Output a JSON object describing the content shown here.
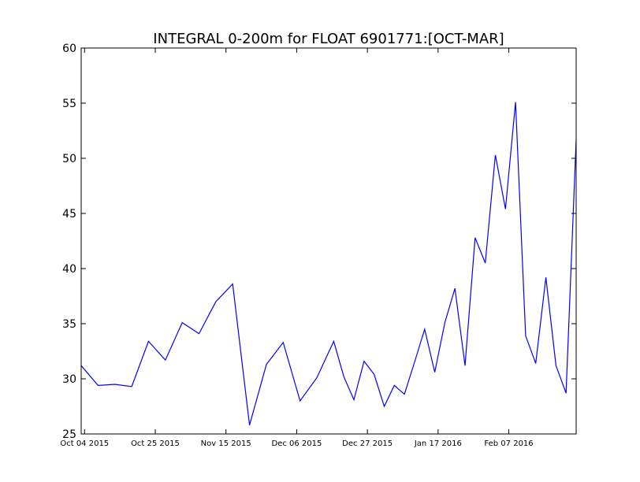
{
  "chart_data": {
    "type": "line",
    "title": "INTEGRAL 0-200m for FLOAT 6901771:[OCT-MAR]",
    "xlabel": "",
    "ylabel": "",
    "x_axis_type": "date",
    "xlim": [
      "2015-10-03",
      "2016-02-27"
    ],
    "ylim": [
      25,
      60
    ],
    "grid": false,
    "x_ticks": [
      "Oct 04 2015",
      "Oct 25 2015",
      "Nov 15 2015",
      "Dec 06 2015",
      "Dec 27 2015",
      "Jan 17 2016",
      "Feb 07 2016"
    ],
    "x_tick_dates": [
      "2015-10-04",
      "2015-10-25",
      "2015-11-15",
      "2015-12-06",
      "2015-12-27",
      "2016-01-17",
      "2016-02-07"
    ],
    "y_ticks": [
      "25",
      "30",
      "35",
      "40",
      "45",
      "50",
      "55",
      "60"
    ],
    "series": [
      {
        "color": "#0000ff",
        "x": [
          "2015-10-03",
          "2015-10-08",
          "2015-10-13",
          "2015-10-18",
          "2015-10-23",
          "2015-10-28",
          "2015-11-02",
          "2015-11-07",
          "2015-11-12",
          "2015-11-17",
          "2015-11-22",
          "2015-11-27",
          "2015-12-02",
          "2015-12-07",
          "2015-12-12",
          "2015-12-17",
          "2015-12-20",
          "2015-12-23",
          "2015-12-26",
          "2015-12-29",
          "2016-01-01",
          "2016-01-04",
          "2016-01-07",
          "2016-01-10",
          "2016-01-13",
          "2016-01-16",
          "2016-01-19",
          "2016-01-22",
          "2016-01-25",
          "2016-01-28",
          "2016-01-31",
          "2016-02-03",
          "2016-02-06",
          "2016-02-09",
          "2016-02-12",
          "2016-02-15",
          "2016-02-18",
          "2016-02-21",
          "2016-02-24",
          "2016-02-27"
        ],
        "y": [
          31.2,
          29.4,
          29.5,
          29.3,
          33.4,
          31.7,
          35.1,
          34.1,
          37.0,
          38.6,
          25.8,
          31.3,
          33.3,
          28.0,
          30.1,
          33.4,
          30.2,
          28.1,
          31.6,
          30.4,
          27.5,
          29.4,
          28.6,
          31.5,
          34.5,
          30.6,
          35.1,
          38.2,
          31.2,
          42.8,
          40.5,
          50.3,
          45.4,
          55.1,
          33.9,
          31.4,
          39.2,
          31.2,
          28.7,
          51.7
        ]
      }
    ]
  }
}
